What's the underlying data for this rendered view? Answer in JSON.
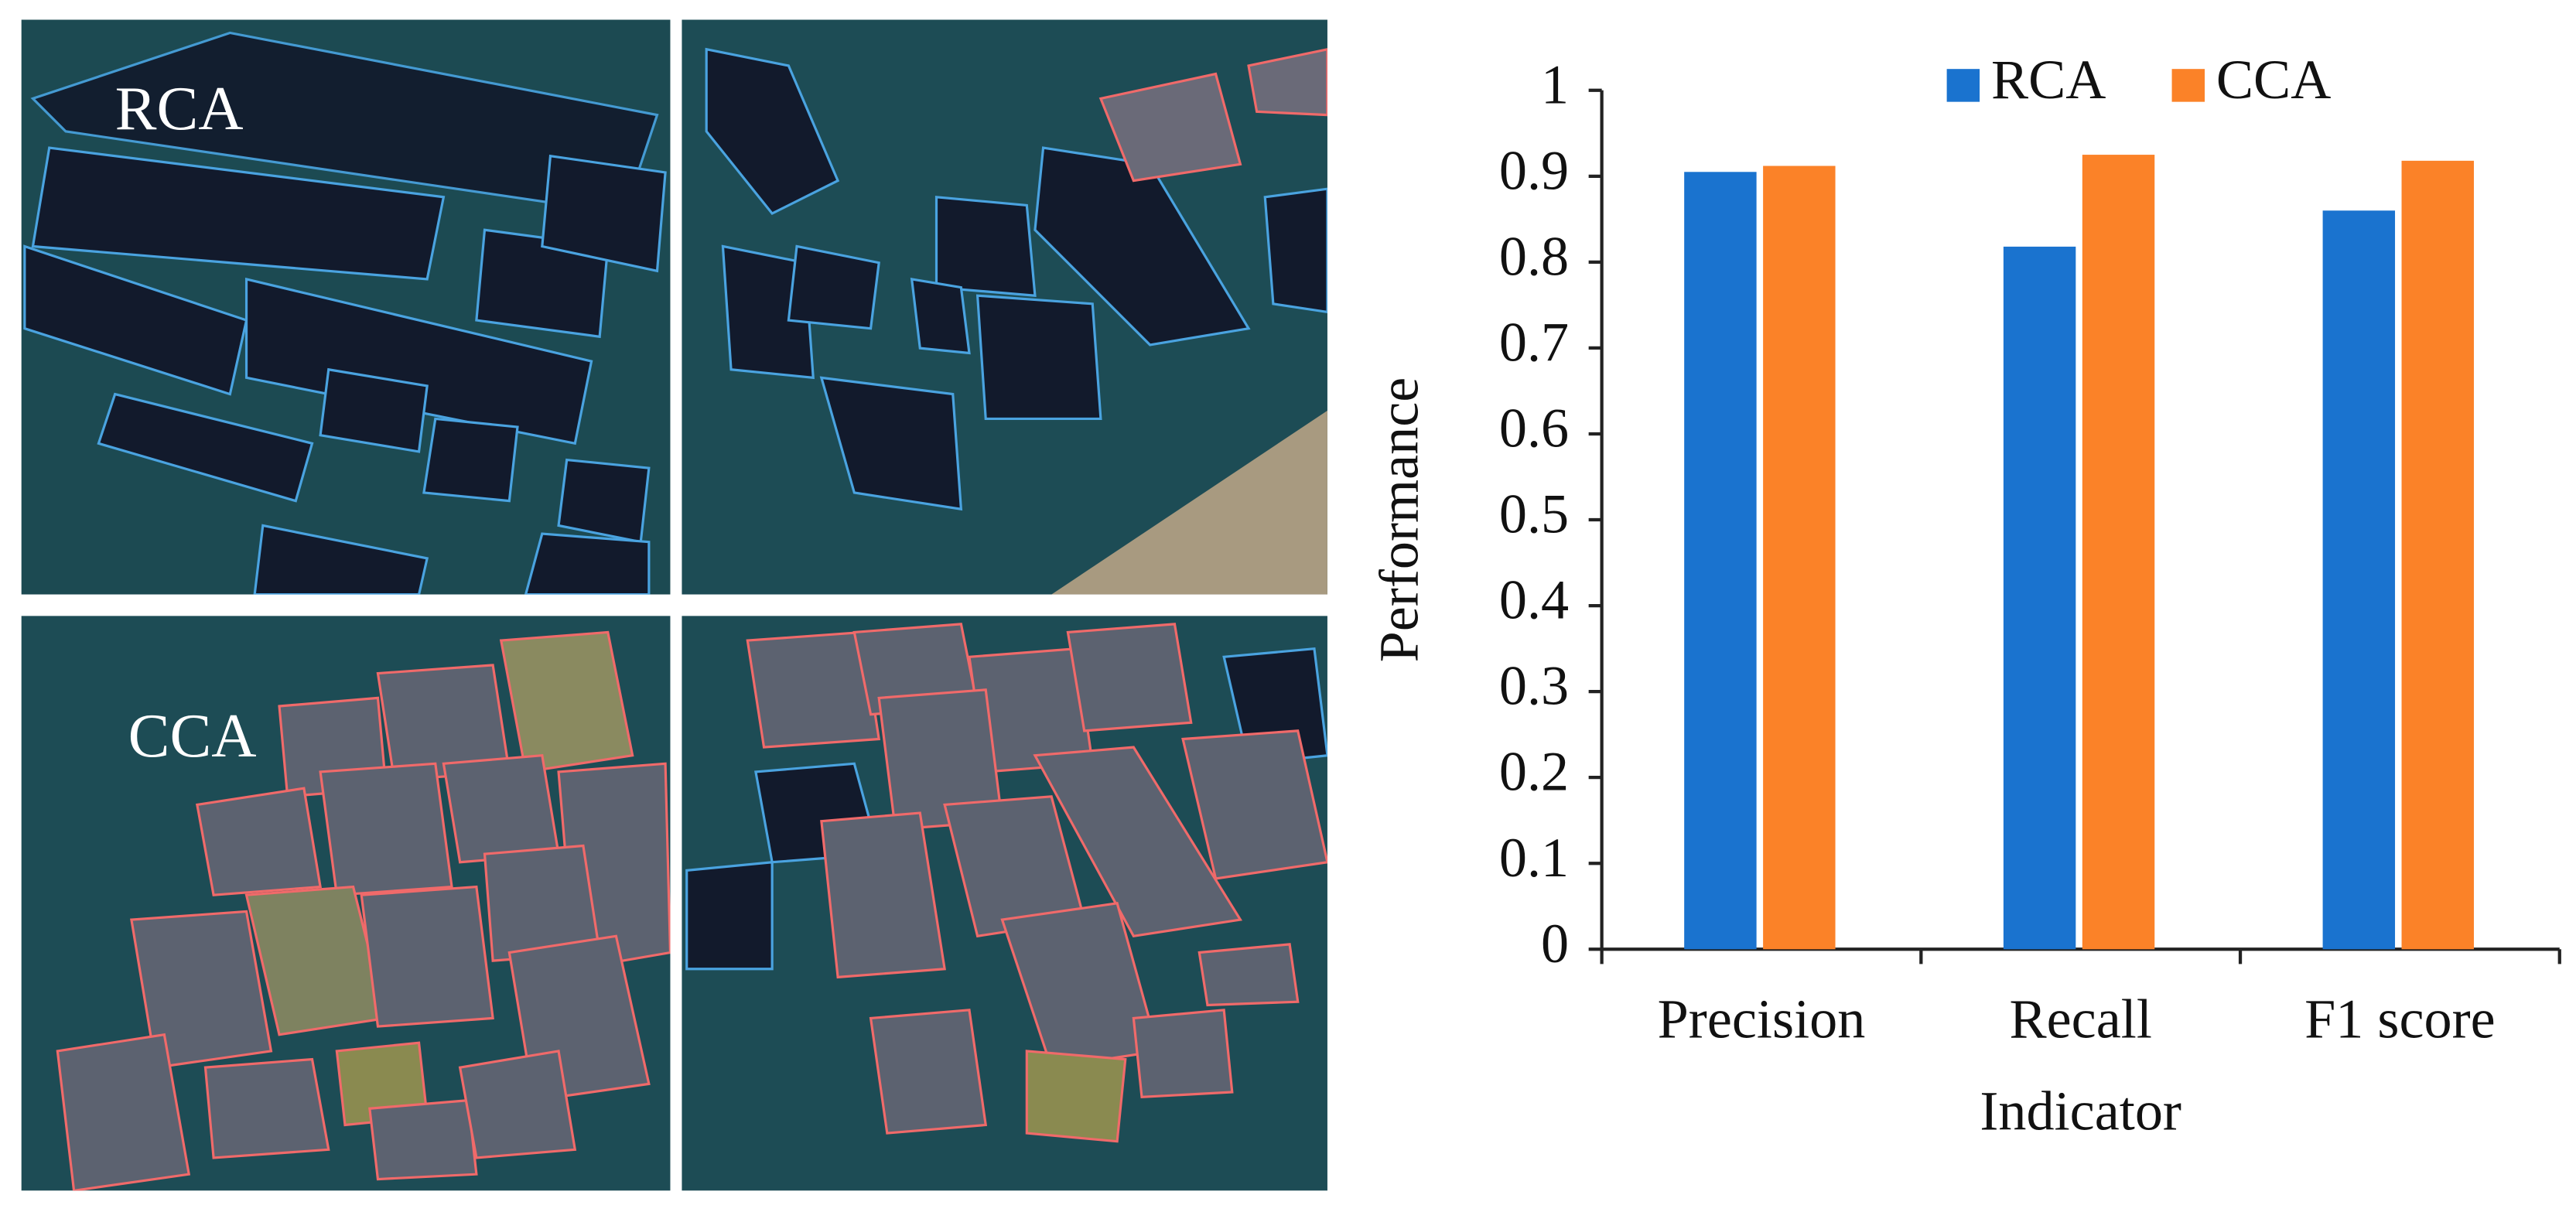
{
  "panel_labels": {
    "top": "RCA",
    "bottom": "CCA"
  },
  "chart_data": {
    "type": "bar",
    "categories": [
      "Precision",
      "Recall",
      "F1 score"
    ],
    "series": [
      {
        "name": "RCA",
        "color": "#1a73cf",
        "values": [
          0.905,
          0.818,
          0.86
        ]
      },
      {
        "name": "CCA",
        "color": "#fb8228",
        "values": [
          0.912,
          0.925,
          0.918
        ]
      }
    ],
    "x_label": "Indicator",
    "y_label": "Performance",
    "ylim": [
      0,
      1
    ],
    "yticks": [
      0,
      0.1,
      0.2,
      0.3,
      0.4,
      0.5,
      0.6,
      0.7,
      0.8,
      0.9,
      1
    ],
    "legend": "top",
    "grid": false
  }
}
